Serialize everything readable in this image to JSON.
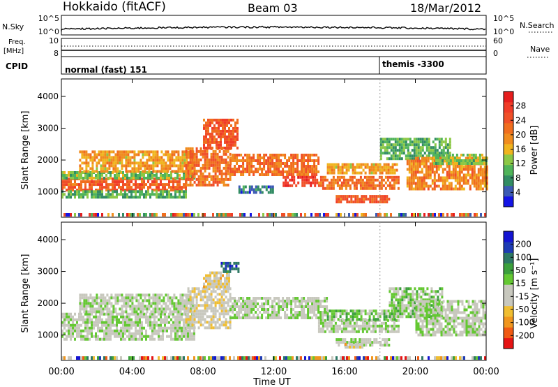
{
  "header": {
    "station": "Hokkaido (fitACF)",
    "beam": "Beam 03",
    "date": "18/Mar/2012"
  },
  "top_panels": {
    "nsky_label": "N.Sky",
    "nsky_tick_top": "10^5",
    "nsky_tick_bottom": "10^0",
    "nsearch_label": "N.Search",
    "nsearch_tick_top": "10^5",
    "nsearch_tick_bottom": "10^0",
    "freq_label_line1": "Freq.",
    "freq_label_line2": "[MHz]",
    "freq_tick_top": "10",
    "freq_tick_bottom": "8",
    "nave_label": "Nave",
    "nave_tick_top": "60",
    "nave_tick_bottom": "0",
    "cpid_label": "CPID",
    "cpid_segments": [
      {
        "start_hour": 0,
        "label": "normal (fast) 151"
      },
      {
        "start_hour": 18,
        "label": "themis -3300"
      }
    ]
  },
  "colors": {
    "power_scale": [
      "#1414e6",
      "#3c5ab4",
      "#328c64",
      "#50b45a",
      "#8cc846",
      "#f0b41e",
      "#f08c1e",
      "#f06e1e",
      "#f05028",
      "#f03c28",
      "#e61e1e"
    ],
    "velocity_scale": [
      "#e61414",
      "#f05a14",
      "#f0961e",
      "#f0be32",
      "#c8c8be",
      "#c8c8be",
      "#64c832",
      "#3ca03c",
      "#2d7864",
      "#1e3cb4",
      "#1414d2"
    ],
    "ground_scatter": "#b4b4b4"
  },
  "chart_data": [
    {
      "type": "heatmap",
      "title": "Power",
      "xlabel": "",
      "ylabel": "Slant Range [km]",
      "xlim_hours": [
        0,
        24
      ],
      "ylim": [
        200,
        4550
      ],
      "yticks": [
        "1000",
        "2000",
        "3000",
        "4000"
      ],
      "colorbar_label": "Power [dB]",
      "colorbar_range": [
        0,
        32
      ],
      "colorbar_ticks": [
        "4",
        "8",
        "12",
        "16",
        "20",
        "24",
        "28"
      ],
      "bands": [
        {
          "t0": 0.0,
          "t1": 7.0,
          "r0": 1050,
          "r1": 1450,
          "value": 24
        },
        {
          "t0": 0.0,
          "t1": 7.5,
          "r0": 1450,
          "r1": 1650,
          "value": 12
        },
        {
          "t0": 0.0,
          "t1": 7.0,
          "r0": 850,
          "r1": 1050,
          "value": 10
        },
        {
          "t0": 1.0,
          "t1": 7.5,
          "r0": 1650,
          "r1": 2300,
          "value": 18
        },
        {
          "t0": 7.0,
          "t1": 9.5,
          "r0": 1200,
          "r1": 2400,
          "value": 22
        },
        {
          "t0": 8.0,
          "t1": 10.0,
          "r0": 2400,
          "r1": 3300,
          "value": 24
        },
        {
          "t0": 9.5,
          "t1": 14.5,
          "r0": 1500,
          "r1": 2200,
          "value": 22
        },
        {
          "t0": 12.5,
          "t1": 14.5,
          "r0": 1200,
          "r1": 1500,
          "value": 28
        },
        {
          "t0": 10.0,
          "t1": 12.0,
          "r0": 950,
          "r1": 1200,
          "value": 6
        },
        {
          "t0": 14.5,
          "t1": 19.0,
          "r0": 1100,
          "r1": 1500,
          "value": 22
        },
        {
          "t0": 15.0,
          "t1": 19.0,
          "r0": 1600,
          "r1": 1900,
          "value": 18
        },
        {
          "t0": 15.5,
          "t1": 18.5,
          "r0": 700,
          "r1": 900,
          "value": 24
        },
        {
          "t0": 18.0,
          "t1": 22.0,
          "r0": 2000,
          "r1": 2700,
          "value": 10
        },
        {
          "t0": 19.5,
          "t1": 24.0,
          "r0": 1100,
          "r1": 2100,
          "value": 20
        },
        {
          "t0": 21.0,
          "t1": 24.0,
          "r0": 1900,
          "r1": 2200,
          "value": 12
        }
      ]
    },
    {
      "type": "heatmap",
      "title": "Velocity",
      "xlabel": "Time UT",
      "ylabel": "Slant Range [km]",
      "xlim_hours": [
        0,
        24
      ],
      "xticks": [
        "00:00",
        "04:00",
        "08:00",
        "12:00",
        "16:00",
        "20:00",
        "00:00"
      ],
      "ylim": [
        200,
        4550
      ],
      "yticks": [
        "1000",
        "2000",
        "3000",
        "4000"
      ],
      "colorbar_label": "Velocity [m s⁻¹]",
      "colorbar_range": [
        -250,
        250
      ],
      "colorbar_ticks": [
        "-200",
        "-100",
        "-50",
        "-15",
        "15",
        "50",
        "100",
        "200"
      ],
      "bands": [
        {
          "t0": 0.0,
          "t1": 7.5,
          "r0": 900,
          "r1": 1700,
          "value": 0
        },
        {
          "t0": 1.0,
          "t1": 7.5,
          "r0": 1700,
          "r1": 2300,
          "value": 0
        },
        {
          "t0": 7.0,
          "t1": 9.5,
          "r0": 1200,
          "r1": 2500,
          "value": -40
        },
        {
          "t0": 8.0,
          "t1": 9.5,
          "r0": 2500,
          "r1": 3000,
          "value": -60
        },
        {
          "t0": 9.0,
          "t1": 10.0,
          "r0": 3000,
          "r1": 3300,
          "value": 160
        },
        {
          "t0": 9.5,
          "t1": 15.0,
          "r0": 1500,
          "r1": 2200,
          "value": 0
        },
        {
          "t0": 14.5,
          "t1": 19.0,
          "r0": 1100,
          "r1": 1500,
          "value": 0
        },
        {
          "t0": 15.0,
          "t1": 19.0,
          "r0": 1500,
          "r1": 1800,
          "value": 40
        },
        {
          "t0": 15.5,
          "t1": 18.5,
          "r0": 700,
          "r1": 900,
          "value": 0
        },
        {
          "t0": 16.0,
          "t1": 17.0,
          "r0": 600,
          "r1": 750,
          "value": -60
        },
        {
          "t0": 18.5,
          "t1": 21.5,
          "r0": 1600,
          "r1": 2500,
          "value": 30
        },
        {
          "t0": 20.0,
          "t1": 24.0,
          "r0": 1000,
          "r1": 2100,
          "value": 0
        }
      ]
    }
  ]
}
